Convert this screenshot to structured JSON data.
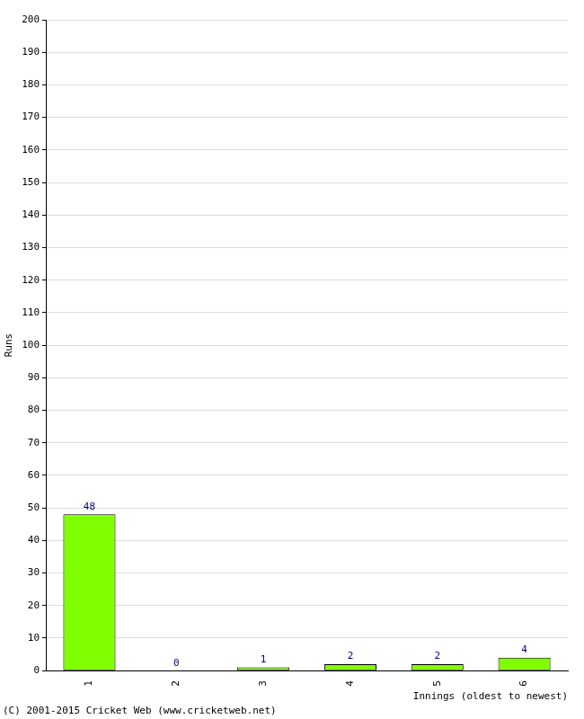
{
  "chart_data": {
    "type": "bar",
    "categories": [
      "1",
      "2",
      "3",
      "4",
      "5",
      "6"
    ],
    "values": [
      48,
      0,
      1,
      2,
      2,
      4
    ],
    "color": "#80ff00",
    "x_label": "Innings (oldest to newest)",
    "y_label": "Runs",
    "annotations": [
      "(C) 2001-2015 Cricket Web (www.cricketweb.net)"
    ],
    "ylim": [
      0,
      200
    ],
    "yticks": [
      0,
      10,
      20,
      30,
      40,
      50,
      60,
      70,
      80,
      90,
      100,
      110,
      120,
      130,
      140,
      150,
      160,
      170,
      180,
      190,
      200
    ],
    "grid": true,
    "data_labels": true
  }
}
